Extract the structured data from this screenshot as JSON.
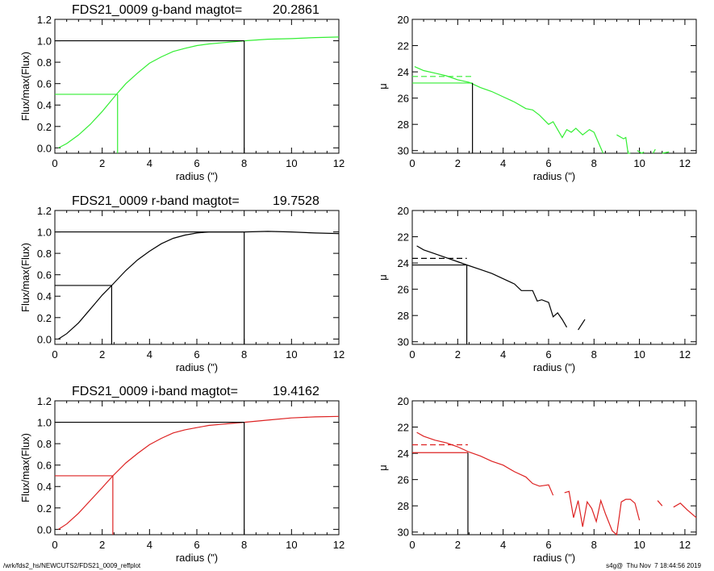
{
  "footer": {
    "path": "/wrk/fds2_hs/NEWCUTS2/FDS21_0009_reffplot",
    "stamp": "s4g@  Thu Nov  7 18:44:56 2019"
  },
  "chart_data": [
    {
      "id": "g-curve",
      "type": "line",
      "band": "g",
      "title_prefix": "FDS21_0009 g-band  magtot=",
      "title_value": "20.2861",
      "xlabel": "radius (\")",
      "ylabel": "Flux/max(Flux)",
      "xlim": [
        0,
        12
      ],
      "ylim": [
        -0.05,
        1.2
      ],
      "xticks": [
        "0",
        "2",
        "4",
        "6",
        "8",
        "10",
        "12"
      ],
      "yticks": [
        "0.0",
        "0.2",
        "0.4",
        "0.6",
        "0.8",
        "1.0",
        "1.2"
      ],
      "color": "#33ee33",
      "x": [
        0.15,
        0.5,
        1,
        1.5,
        2,
        2.6,
        3,
        3.5,
        4,
        4.5,
        5,
        5.5,
        6,
        6.5,
        7,
        7.5,
        8,
        9,
        10,
        11,
        12
      ],
      "y": [
        0.0,
        0.04,
        0.12,
        0.22,
        0.34,
        0.5,
        0.6,
        0.7,
        0.79,
        0.85,
        0.9,
        0.93,
        0.955,
        0.97,
        0.98,
        0.99,
        1.0,
        1.015,
        1.02,
        1.03,
        1.035
      ],
      "reff": 2.65,
      "rtot": 8.0
    },
    {
      "id": "g-profile",
      "type": "line",
      "band": "g",
      "xlabel": "radius (\")",
      "ylabel": "μ",
      "xlim": [
        0,
        12.5
      ],
      "ylim": [
        30.2,
        20
      ],
      "reverse_y": true,
      "xticks": [
        "0",
        "2",
        "4",
        "6",
        "8",
        "10",
        "12"
      ],
      "yticks": [
        "20",
        "22",
        "24",
        "26",
        "28",
        "30"
      ],
      "color": "#33ee33",
      "segments": [
        {
          "x": [
            0.1,
            0.5,
            1,
            1.5,
            2,
            2.5,
            3,
            3.5,
            4,
            4.5,
            5,
            5.3,
            5.6,
            6,
            6.2,
            6.4,
            6.6,
            6.8,
            7,
            7.2,
            7.5,
            7.8,
            8,
            8.2,
            8.4
          ],
          "y": [
            23.6,
            23.9,
            24.1,
            24.3,
            24.6,
            24.8,
            25.2,
            25.5,
            25.9,
            26.3,
            26.8,
            26.9,
            27.3,
            28.0,
            27.8,
            28.4,
            29.0,
            28.4,
            28.6,
            28.3,
            28.8,
            28.4,
            28.6,
            29.4,
            30.3
          ]
        },
        {
          "x": [
            9.0,
            9.3,
            9.4,
            9.5,
            9.6
          ],
          "y": [
            28.8,
            29.1,
            29.0,
            30.3,
            30.3
          ]
        },
        {
          "x": [
            9.9,
            10.1,
            10.2
          ],
          "y": [
            30.0,
            30.3,
            30.1
          ]
        },
        {
          "x": [
            10.6,
            10.7
          ],
          "y": [
            30.3,
            29.9
          ]
        },
        {
          "x": [
            11.0,
            11.3
          ],
          "y": [
            30.3,
            30.1
          ]
        }
      ],
      "mu_eff": 24.85,
      "mu_mean": 24.35,
      "reff": 2.65
    },
    {
      "id": "r-curve",
      "type": "line",
      "band": "r",
      "title_prefix": "FDS21_0009 r-band  magtot=",
      "title_value": "19.7528",
      "xlabel": "radius (\")",
      "ylabel": "Flux/max(Flux)",
      "xlim": [
        0,
        12
      ],
      "ylim": [
        -0.05,
        1.2
      ],
      "xticks": [
        "0",
        "2",
        "4",
        "6",
        "8",
        "10",
        "12"
      ],
      "yticks": [
        "0.0",
        "0.2",
        "0.4",
        "0.6",
        "0.8",
        "1.0",
        "1.2"
      ],
      "color": "#000000",
      "x": [
        0.15,
        0.5,
        1,
        1.5,
        2,
        2.4,
        3,
        3.5,
        4,
        4.5,
        5,
        5.5,
        6,
        6.5,
        7,
        7.5,
        8,
        9,
        10,
        11,
        12
      ],
      "y": [
        0.0,
        0.05,
        0.15,
        0.28,
        0.41,
        0.5,
        0.64,
        0.74,
        0.82,
        0.89,
        0.94,
        0.97,
        0.99,
        1.0,
        1.0,
        1.0,
        1.0,
        1.005,
        1.0,
        0.99,
        0.985
      ],
      "reff": 2.4,
      "rtot": 8.0
    },
    {
      "id": "r-profile",
      "type": "line",
      "band": "r",
      "xlabel": "radius (\")",
      "ylabel": "μ",
      "xlim": [
        0,
        12.5
      ],
      "ylim": [
        30.2,
        20
      ],
      "reverse_y": true,
      "xticks": [
        "0",
        "2",
        "4",
        "6",
        "8",
        "10",
        "12"
      ],
      "yticks": [
        "20",
        "22",
        "24",
        "26",
        "28",
        "30"
      ],
      "color": "#000000",
      "segments": [
        {
          "x": [
            0.2,
            0.5,
            1,
            1.5,
            2,
            2.4,
            3,
            3.5,
            4,
            4.5,
            4.8,
            5.0,
            5.3,
            5.5,
            5.7,
            6.0,
            6.2,
            6.4,
            6.6,
            6.8
          ],
          "y": [
            22.7,
            23.0,
            23.3,
            23.6,
            23.9,
            24.15,
            24.5,
            24.8,
            25.2,
            25.6,
            26.1,
            26.1,
            26.1,
            26.9,
            26.8,
            27.0,
            28.1,
            27.8,
            28.3,
            28.9
          ]
        },
        {
          "x": [
            7.3,
            7.6
          ],
          "y": [
            29.1,
            28.3
          ]
        }
      ],
      "mu_eff": 24.15,
      "mu_mean": 23.65,
      "reff": 2.4
    },
    {
      "id": "i-curve",
      "type": "line",
      "band": "i",
      "title_prefix": "FDS21_0009 i-band  magtot=",
      "title_value": "19.4162",
      "xlabel": "radius (\")",
      "ylabel": "Flux/max(Flux)",
      "xlim": [
        0,
        12
      ],
      "ylim": [
        -0.05,
        1.2
      ],
      "xticks": [
        "0",
        "2",
        "4",
        "6",
        "8",
        "10",
        "12"
      ],
      "yticks": [
        "0.0",
        "0.2",
        "0.4",
        "0.6",
        "0.8",
        "1.0",
        "1.2"
      ],
      "color": "#dd2222",
      "x": [
        0.15,
        0.5,
        1,
        1.5,
        2,
        2.45,
        3,
        3.5,
        4,
        4.5,
        5,
        5.5,
        6,
        6.5,
        7,
        7.5,
        8,
        9,
        10,
        11,
        12
      ],
      "y": [
        0.0,
        0.05,
        0.15,
        0.27,
        0.39,
        0.5,
        0.62,
        0.71,
        0.79,
        0.85,
        0.9,
        0.93,
        0.95,
        0.97,
        0.98,
        0.99,
        1.0,
        1.02,
        1.04,
        1.05,
        1.055
      ],
      "reff": 2.45,
      "rtot": 8.0
    },
    {
      "id": "i-profile",
      "type": "line",
      "band": "i",
      "xlabel": "radius (\")",
      "ylabel": "μ",
      "xlim": [
        0,
        12.5
      ],
      "ylim": [
        30.2,
        20
      ],
      "reverse_y": true,
      "xticks": [
        "0",
        "2",
        "4",
        "6",
        "8",
        "10",
        "12"
      ],
      "yticks": [
        "20",
        "22",
        "24",
        "26",
        "28",
        "30"
      ],
      "color": "#dd2222",
      "segments": [
        {
          "x": [
            0.2,
            0.5,
            1,
            1.5,
            2,
            2.5,
            3,
            3.5,
            4,
            4.5,
            5,
            5.3,
            5.6,
            6.0,
            6.2
          ],
          "y": [
            22.4,
            22.7,
            23.0,
            23.2,
            23.5,
            23.9,
            24.2,
            24.6,
            24.9,
            25.4,
            25.8,
            26.3,
            26.5,
            26.4,
            27.2
          ]
        },
        {
          "x": [
            6.7,
            6.9,
            7.1,
            7.3,
            7.5,
            7.7,
            7.9,
            8.1,
            8.3,
            8.5,
            8.8,
            9.0,
            9.2,
            9.4,
            9.6,
            9.8,
            10.0
          ],
          "y": [
            27.0,
            26.9,
            28.9,
            27.6,
            29.6,
            27.7,
            28.2,
            29.2,
            27.6,
            28.6,
            29.9,
            30.2,
            27.7,
            27.5,
            27.5,
            27.8,
            29.1
          ]
        },
        {
          "x": [
            10.8,
            11.0
          ],
          "y": [
            27.6,
            28.0
          ]
        },
        {
          "x": [
            11.5,
            11.8,
            12.1,
            12.5
          ],
          "y": [
            28.1,
            27.8,
            28.3,
            28.9
          ]
        }
      ],
      "mu_eff": 23.95,
      "mu_mean": 23.35,
      "reff": 2.45
    }
  ]
}
